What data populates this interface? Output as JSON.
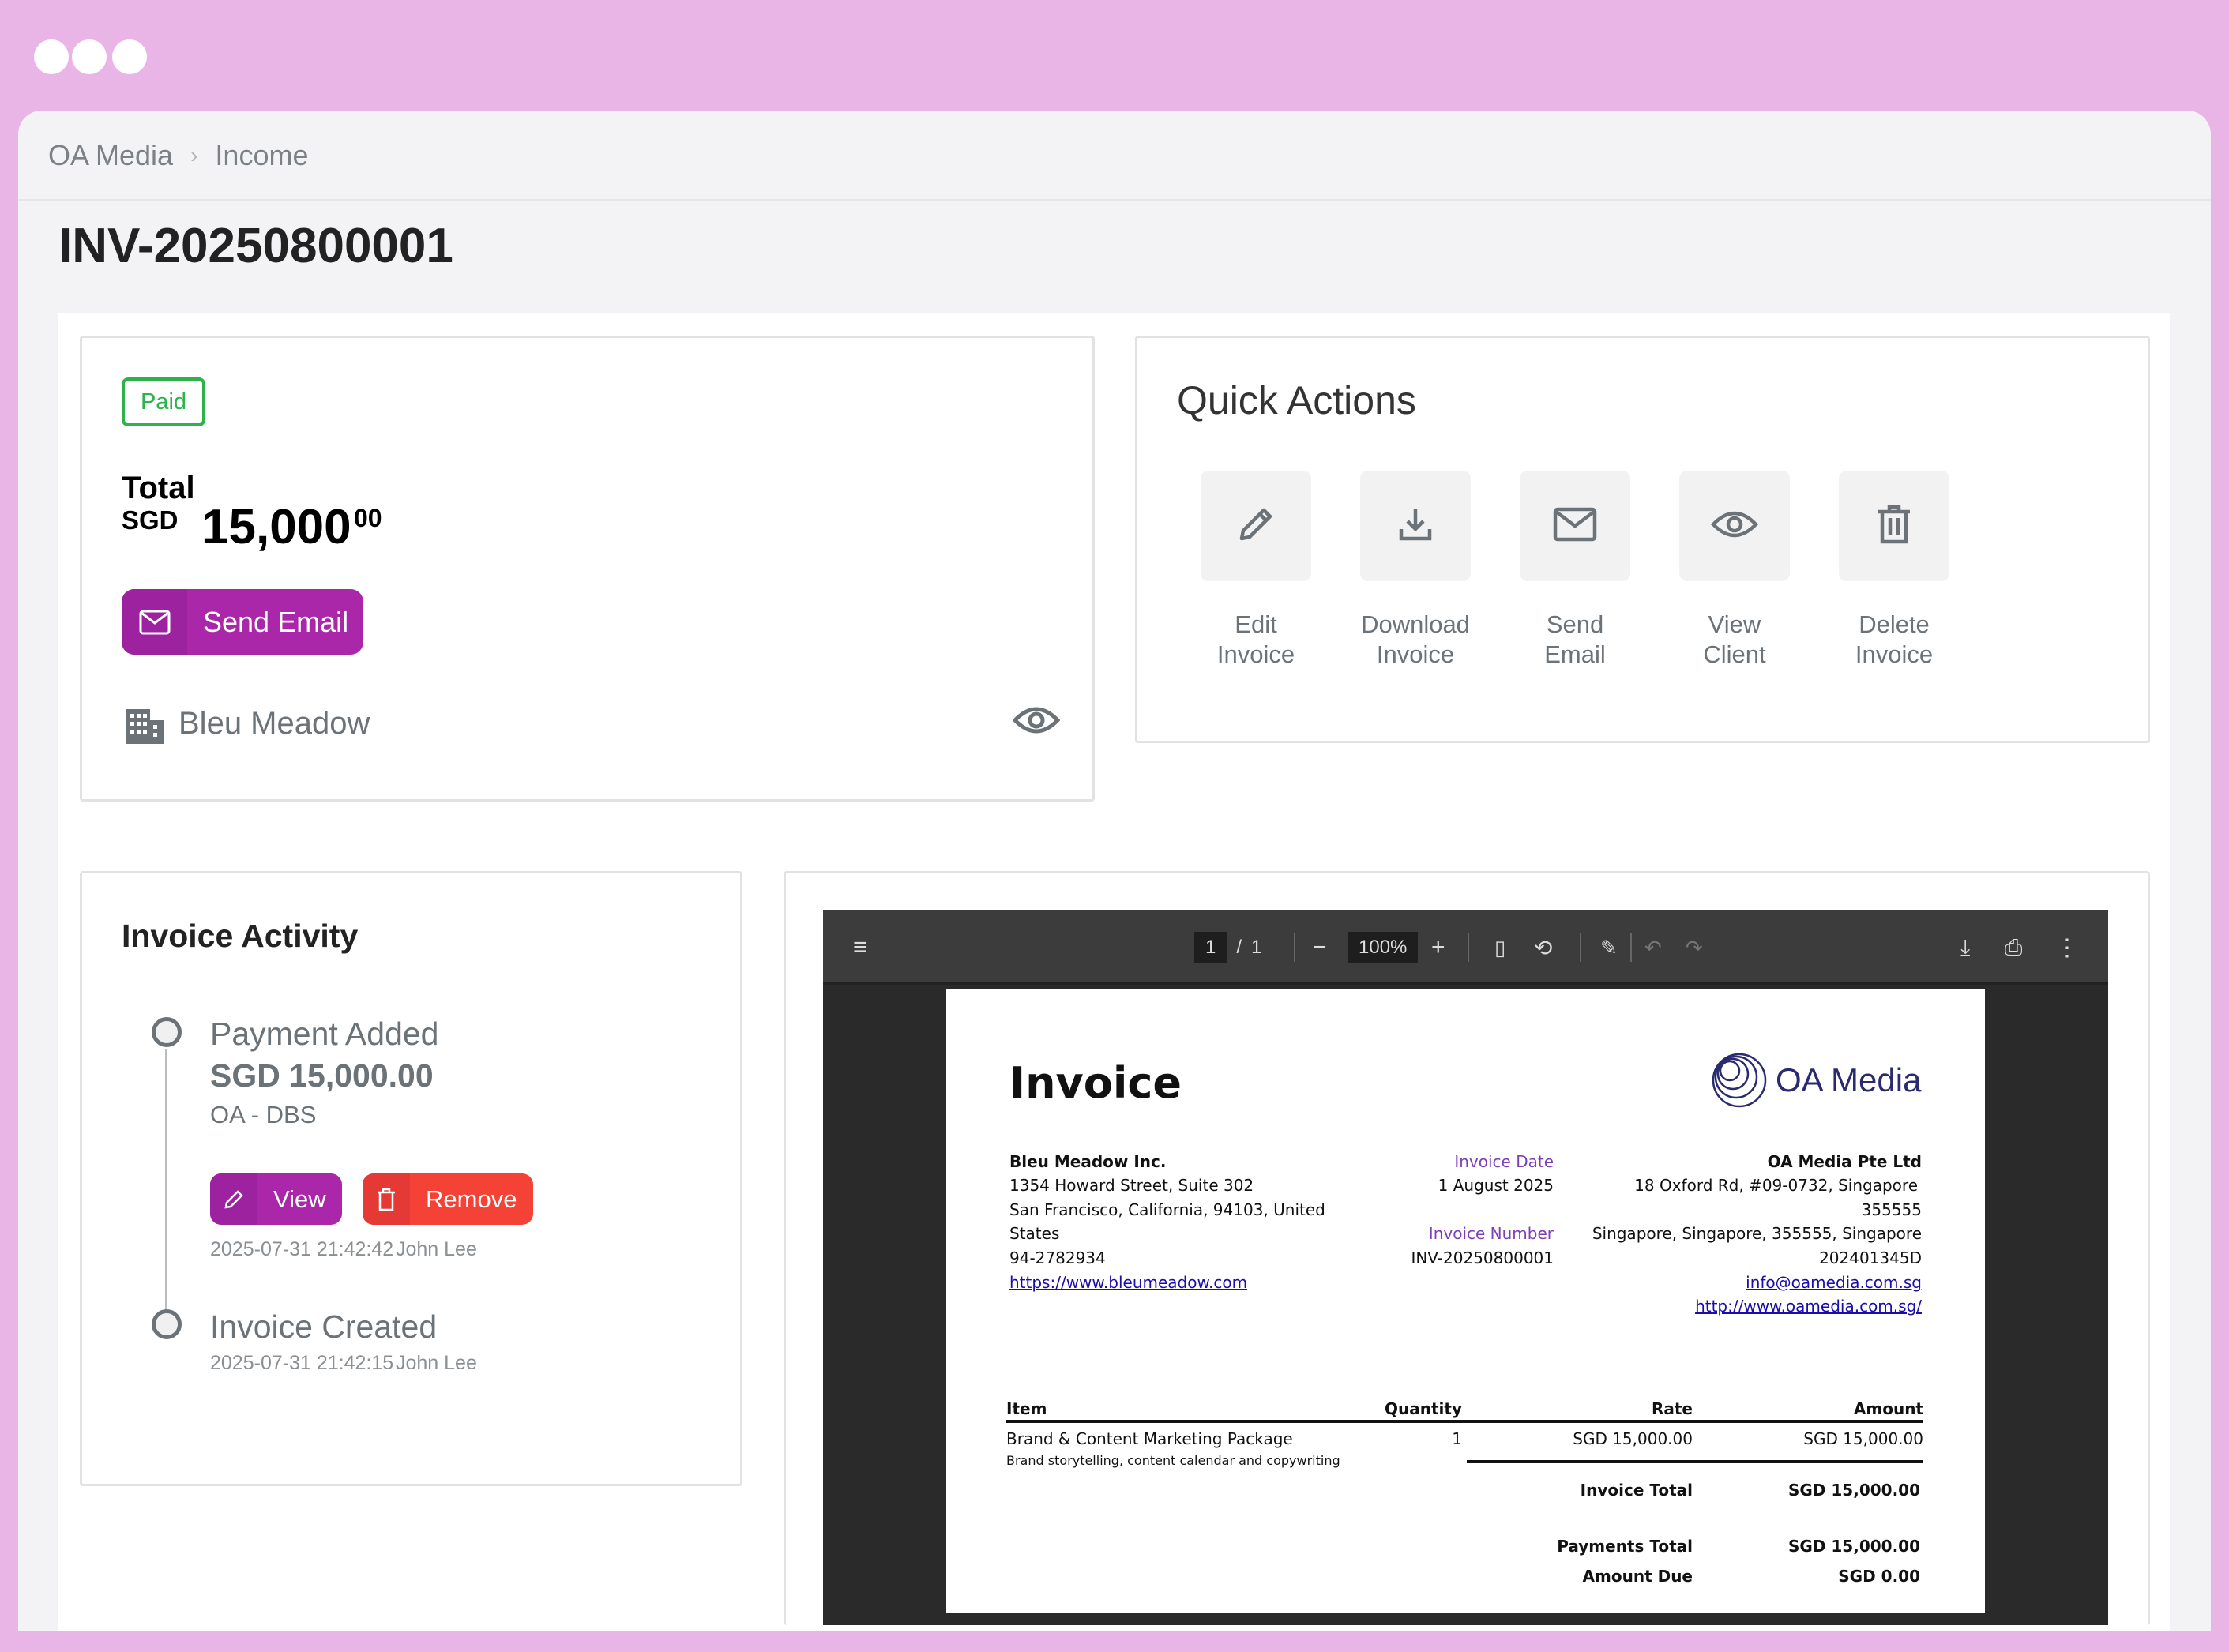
{
  "window": {
    "dots": 3,
    "frame_color": "#E9B4E6"
  },
  "breadcrumb": {
    "items": [
      "OA Media",
      "Income"
    ],
    "separator": "›"
  },
  "page_title": "INV-20250800001",
  "summary": {
    "status": "Paid",
    "status_color": "#2db34a",
    "total_label": "Total",
    "currency": "SGD",
    "amount_whole": "15,000",
    "amount_cents": "00",
    "send_email_label": "Send Email",
    "client_name": "Bleu Meadow",
    "accent_color": "#AB27A9"
  },
  "quick_actions": {
    "title": "Quick Actions",
    "items": [
      {
        "icon": "pencil-icon",
        "line1": "Edit",
        "line2": "Invoice"
      },
      {
        "icon": "download-icon",
        "line1": "Download",
        "line2": "Invoice"
      },
      {
        "icon": "envelope-icon",
        "line1": "Send",
        "line2": "Email"
      },
      {
        "icon": "eye-icon",
        "line1": "View",
        "line2": "Client"
      },
      {
        "icon": "trash-icon",
        "line1": "Delete",
        "line2": "Invoice"
      }
    ]
  },
  "activity": {
    "title": "Invoice Activity",
    "events": [
      {
        "title": "Payment Added",
        "amount": "SGD 15,000.00",
        "account": "OA - DBS",
        "view_label": "View",
        "remove_label": "Remove",
        "timestamp": "2025-07-31 21:42:42",
        "user": "John Lee"
      },
      {
        "title": "Invoice Created",
        "timestamp": "2025-07-31 21:42:15",
        "user": "John Lee"
      }
    ]
  },
  "pdf_viewer": {
    "page_current": "1",
    "page_separator": "/",
    "page_total": "1",
    "zoom": "100%",
    "document": {
      "heading": "Invoice",
      "logo_text": "OA Media",
      "bill_to": {
        "name": "Bleu Meadow Inc.",
        "lines": [
          "1354 Howard Street, Suite 302",
          "San Francisco, California, 94103, United",
          "States",
          "94-2782934"
        ],
        "website": "https://www.bleumeadow.com"
      },
      "invoice_date_label": "Invoice Date",
      "invoice_date": "1 August 2025",
      "invoice_number_label": "Invoice Number",
      "invoice_number": "INV-20250800001",
      "from": {
        "name": "OA Media Pte Ltd",
        "lines": [
          "18 Oxford Rd, #09-0732, Singapore",
          "355555",
          "Singapore, Singapore, 355555, Singapore",
          "202401345D"
        ],
        "email": "info@oamedia.com.sg",
        "website": "http://www.oamedia.com.sg/"
      },
      "table": {
        "headers": [
          "Item",
          "Quantity",
          "Rate",
          "Amount"
        ],
        "rows": [
          {
            "item": "Brand & Content Marketing Package",
            "description": "Brand storytelling, content calendar and copywriting",
            "quantity": "1",
            "rate": "SGD 15,000.00",
            "amount": "SGD 15,000.00"
          }
        ]
      },
      "totals": [
        {
          "label": "Invoice Total",
          "value": "SGD 15,000.00"
        },
        {
          "label": "Payments Total",
          "value": "SGD 15,000.00"
        },
        {
          "label": "Amount Due",
          "value": "SGD 0.00"
        }
      ]
    }
  }
}
